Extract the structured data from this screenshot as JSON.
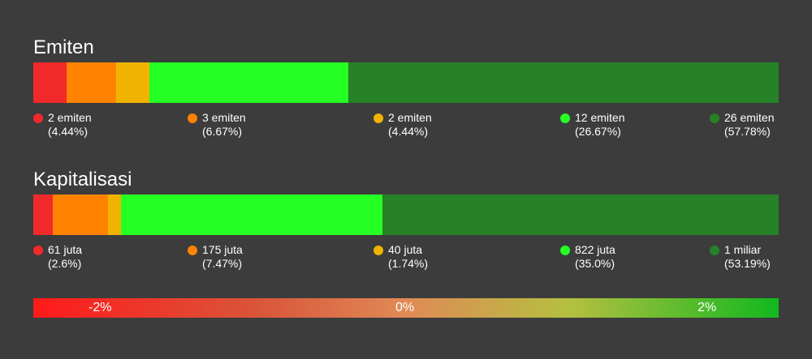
{
  "chart_data": [
    {
      "type": "bar",
      "title": "Emiten",
      "categories": [
        "c1",
        "c2",
        "c3",
        "c4",
        "c5"
      ],
      "values": [
        4.44,
        6.67,
        4.44,
        26.67,
        57.78
      ],
      "labels": [
        "2 emiten",
        "3 emiten",
        "2 emiten",
        "12 emiten",
        "26 emiten"
      ],
      "percents": [
        "(4.44%)",
        "(6.67%)",
        "(4.44%)",
        "(26.67%)",
        "(57.78%)"
      ],
      "colors": [
        "#f02a2a",
        "#ff8300",
        "#f0b400",
        "#24ff24",
        "#268127"
      ],
      "stacked": true,
      "orientation": "horizontal"
    },
    {
      "type": "bar",
      "title": "Kapitalisasi",
      "categories": [
        "c1",
        "c2",
        "c3",
        "c4",
        "c5"
      ],
      "values": [
        2.6,
        7.47,
        1.74,
        35.0,
        53.19
      ],
      "labels": [
        "61 juta",
        "175 juta",
        "40 juta",
        "822 juta",
        "1 miliar"
      ],
      "percents": [
        "(2.6%)",
        "(7.47%)",
        "(1.74%)",
        "(35.0%)",
        "(53.19%)"
      ],
      "colors": [
        "#f02a2a",
        "#ff8300",
        "#f0b400",
        "#24ff24",
        "#268127"
      ],
      "stacked": true,
      "orientation": "horizontal"
    }
  ],
  "scale": {
    "labels": [
      "-2%",
      "0%",
      "2%"
    ]
  }
}
